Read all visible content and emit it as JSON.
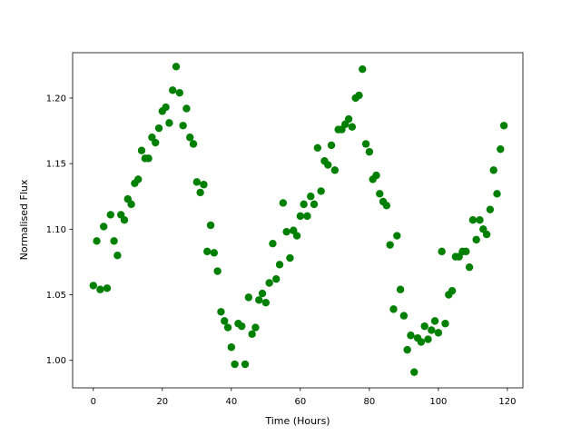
{
  "chart_data": {
    "type": "scatter",
    "x_label": "Time (Hours)",
    "y_label": "Normalised Flux",
    "color": "#008000",
    "x": [
      0,
      1,
      2,
      3,
      4,
      5,
      6,
      7,
      8,
      9,
      10,
      11,
      12,
      13,
      14,
      15,
      16,
      17,
      18,
      19,
      20,
      21,
      22,
      23,
      24,
      25,
      26,
      27,
      28,
      29,
      30,
      31,
      32,
      33,
      34,
      35,
      36,
      37,
      38,
      39,
      40,
      41,
      42,
      43,
      44,
      45,
      46,
      47,
      48,
      49,
      50,
      51,
      52,
      53,
      54,
      55,
      56,
      57,
      58,
      59,
      60,
      61,
      62,
      63,
      64,
      65,
      66,
      67,
      68,
      69,
      70,
      71,
      72,
      73,
      74,
      75,
      76,
      77,
      78,
      79,
      80,
      81,
      82,
      83,
      84,
      85,
      86,
      87,
      88,
      89,
      90,
      91,
      92,
      93,
      94,
      95,
      96,
      97,
      98,
      99,
      100,
      101,
      102,
      103,
      104,
      105,
      106,
      107,
      108,
      109,
      110,
      111,
      112,
      113,
      114,
      115,
      116,
      117,
      118,
      119
    ],
    "values": [
      1.057,
      1.091,
      1.054,
      1.102,
      1.055,
      1.111,
      1.091,
      1.08,
      1.111,
      1.107,
      1.123,
      1.119,
      1.135,
      1.138,
      1.16,
      1.154,
      1.154,
      1.17,
      1.166,
      1.177,
      1.19,
      1.193,
      1.181,
      1.206,
      1.224,
      1.204,
      1.179,
      1.192,
      1.17,
      1.165,
      1.136,
      1.128,
      1.134,
      1.083,
      1.103,
      1.082,
      1.068,
      1.037,
      1.03,
      1.025,
      1.01,
      0.997,
      1.028,
      1.026,
      0.997,
      1.048,
      1.02,
      1.025,
      1.046,
      1.051,
      1.044,
      1.059,
      1.089,
      1.062,
      1.073,
      1.12,
      1.098,
      1.078,
      1.099,
      1.095,
      1.11,
      1.119,
      1.11,
      1.125,
      1.119,
      1.162,
      1.129,
      1.152,
      1.149,
      1.164,
      1.145,
      1.176,
      1.176,
      1.18,
      1.184,
      1.178,
      1.2,
      1.202,
      1.222,
      1.165,
      1.159,
      1.138,
      1.141,
      1.127,
      1.121,
      1.118,
      1.088,
      1.039,
      1.095,
      1.054,
      1.034,
      1.008,
      1.019,
      0.991,
      1.017,
      1.014,
      1.026,
      1.016,
      1.023,
      1.03,
      1.021,
      1.083,
      1.028,
      1.05,
      1.053,
      1.079,
      1.079,
      1.083,
      1.083,
      1.071,
      1.107,
      1.092,
      1.107,
      1.1,
      1.096,
      1.115,
      1.145,
      1.127,
      1.161,
      1.179
    ],
    "xlim": [
      -6,
      124.5
    ],
    "ylim": [
      0.979,
      1.2346
    ],
    "xticks": [
      0,
      20,
      40,
      60,
      80,
      100,
      120
    ],
    "yticks": [
      {
        "value": 1.0,
        "label": "1.00"
      },
      {
        "value": 1.05,
        "label": "1.05"
      },
      {
        "value": 1.1,
        "label": "1.10"
      },
      {
        "value": 1.15,
        "label": "1.15"
      },
      {
        "value": 1.2,
        "label": "1.20"
      }
    ],
    "grid": false
  }
}
